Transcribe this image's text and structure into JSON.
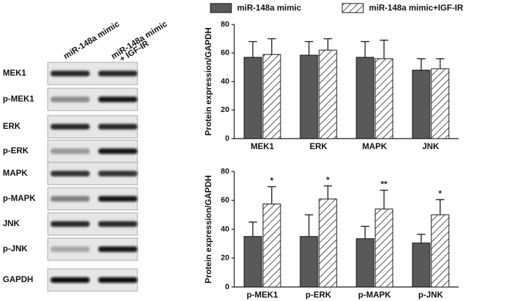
{
  "blot": {
    "columns": [
      [
        "miR-148a mimic"
      ],
      [
        "miR-148a mimic",
        "+ IGF-IR"
      ]
    ],
    "rows": [
      "MEK1",
      "p-MEK1",
      "ERK",
      "p-ERK",
      "MAPK",
      "p-MAPK",
      "JNK",
      "p-JNK",
      "GAPDH"
    ]
  },
  "chart_data": [
    {
      "type": "bar",
      "ylabel": "Protein expression/GAPDH",
      "categories": [
        "MEK1",
        "ERK",
        "MAPK",
        "JNK"
      ],
      "series": [
        {
          "name": "miR-148a mimic",
          "color": "#595959",
          "values": [
            57,
            58.5,
            57,
            48
          ],
          "errors": [
            11,
            9.5,
            11,
            8
          ]
        },
        {
          "name": "miR-148a mimic+IGF-IR",
          "color": "#ffffff",
          "pattern": "hatch",
          "values": [
            59,
            62,
            56,
            49
          ],
          "errors": [
            11,
            8,
            13,
            7
          ]
        }
      ],
      "ylim": [
        0,
        80
      ],
      "yticks": [
        0,
        20,
        40,
        60,
        80
      ]
    },
    {
      "type": "bar",
      "ylabel": "Protein expression/GAPDH",
      "categories": [
        "p-MEK1",
        "p-ERK",
        "p-MAPK",
        "p-JNK"
      ],
      "series": [
        {
          "color": "#595959",
          "values": [
            35,
            35,
            33.5,
            30.5
          ],
          "errors": [
            10,
            15,
            8.5,
            6
          ]
        },
        {
          "color": "#ffffff",
          "pattern": "hatch",
          "values": [
            57.5,
            61,
            54,
            50
          ],
          "errors": [
            12,
            9,
            13,
            10.5
          ],
          "significance": [
            "*",
            "*",
            "**",
            "*"
          ]
        }
      ],
      "ylim": [
        0,
        80
      ],
      "yticks": [
        0,
        20,
        40,
        60,
        80
      ]
    }
  ]
}
